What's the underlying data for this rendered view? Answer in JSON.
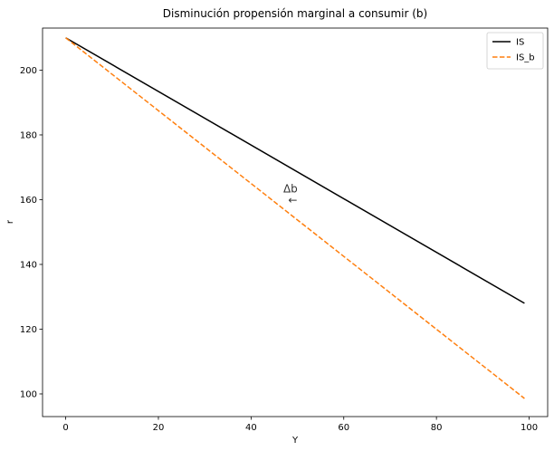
{
  "chart_data": {
    "type": "line",
    "title": "Disminución propensión marginal a consumir (b)",
    "xlabel": "Y",
    "ylabel": "r",
    "xlim": [
      -5,
      104
    ],
    "ylim": [
      93,
      213
    ],
    "xticks": [
      0,
      20,
      40,
      60,
      80,
      100
    ],
    "yticks": [
      100,
      120,
      140,
      160,
      180,
      200
    ],
    "grid": false,
    "legend_position": "top-right",
    "series": [
      {
        "name": "IS",
        "color": "#000000",
        "dash": "solid",
        "x": [
          0,
          99
        ],
        "y": [
          210,
          128
        ]
      },
      {
        "name": "IS_b",
        "color": "#ff7f0e",
        "dash": "dashed",
        "x": [
          0,
          99
        ],
        "y": [
          210,
          98.6
        ]
      }
    ],
    "annotations": [
      {
        "text": "Δb",
        "x": 48.5,
        "y": 162.2
      },
      {
        "text": "←",
        "x": 49,
        "y": 158.8
      }
    ]
  }
}
